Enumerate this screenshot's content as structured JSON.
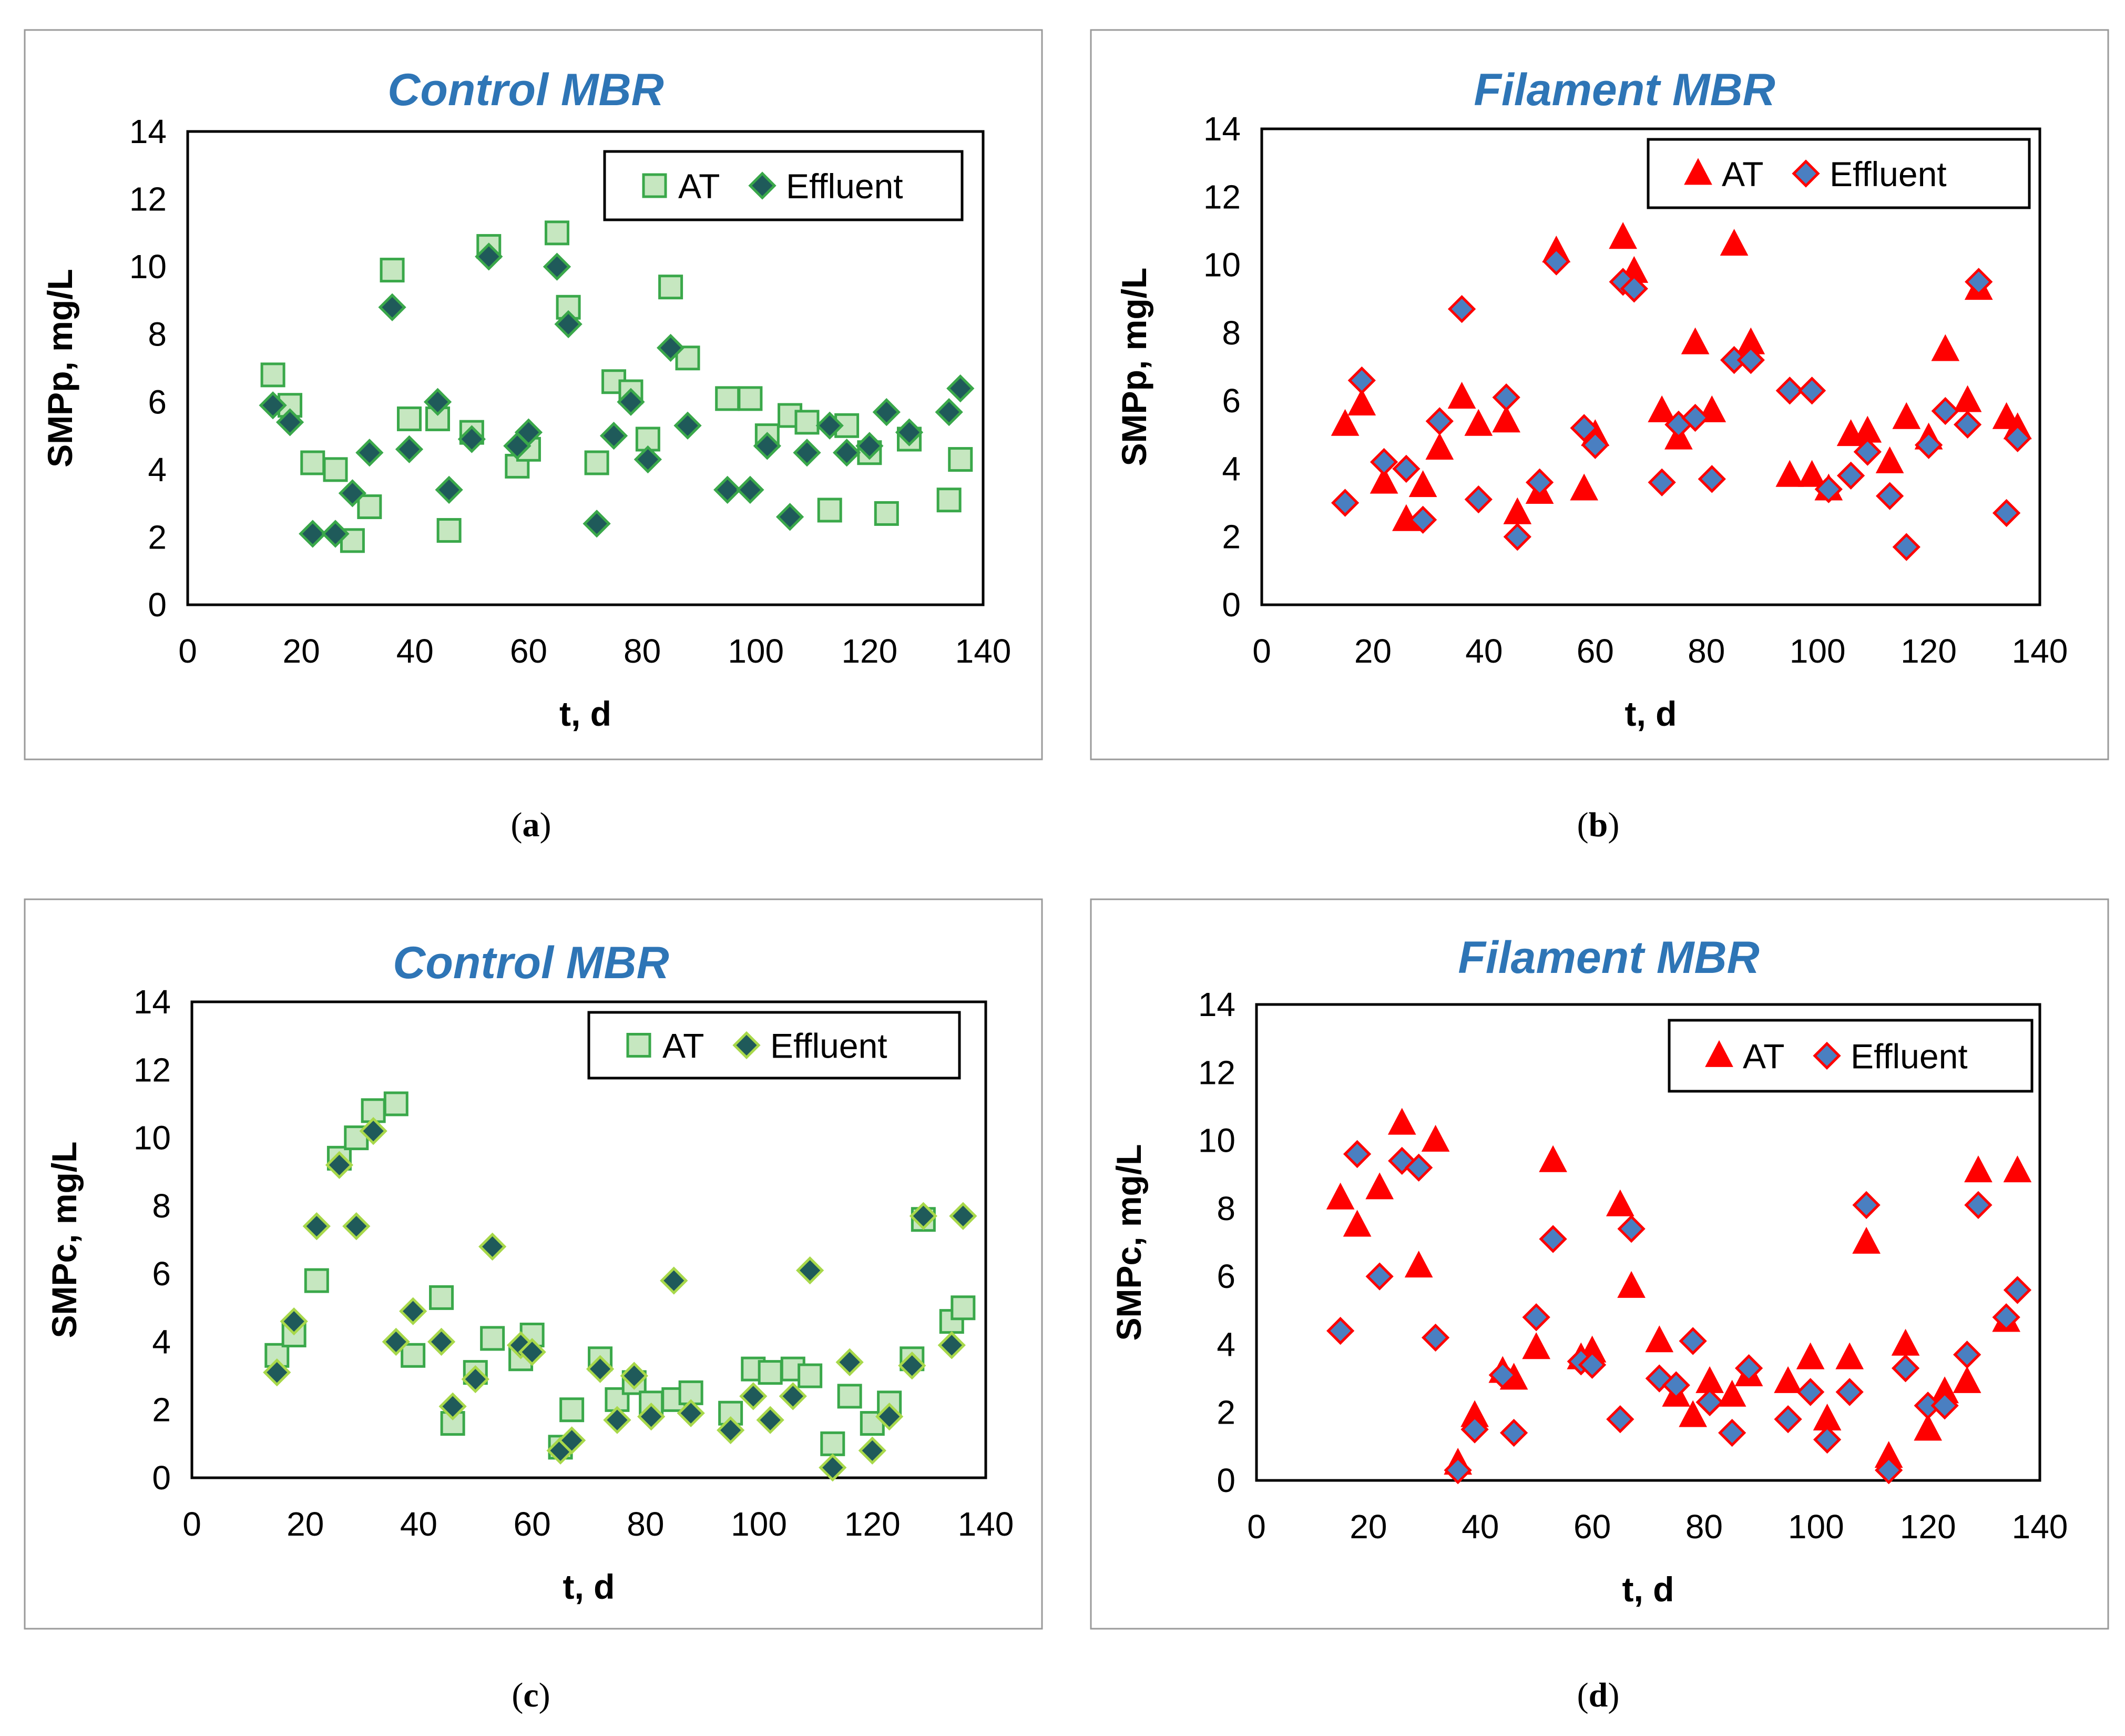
{
  "chart_data": [
    {
      "id": "a",
      "type": "scatter",
      "title": "Control MBR",
      "caption": "a",
      "xlabel": "t, d",
      "ylabel": "SMPp, mg/L",
      "xlim": [
        0,
        140
      ],
      "ylim": [
        0,
        14
      ],
      "xticks": [
        "0",
        "20",
        "40",
        "60",
        "80",
        "100",
        "120",
        "140"
      ],
      "yticks": [
        "0",
        "2",
        "4",
        "6",
        "8",
        "10",
        "12",
        "14"
      ],
      "grid": "horizontal",
      "legend_position": "top-right",
      "series": [
        {
          "name": "AT",
          "marker": "square",
          "fill": "#c6e7c0",
          "stroke": "#3aa84a",
          "x": [
            15,
            18,
            22,
            26,
            29,
            32,
            36,
            39,
            44,
            46,
            50,
            53,
            58,
            60,
            65,
            67,
            72,
            75,
            78,
            81,
            85,
            88,
            95,
            99,
            102,
            106,
            109,
            113,
            116,
            120,
            123,
            127,
            134,
            136
          ],
          "y": [
            6.8,
            5.9,
            4.2,
            4.0,
            1.9,
            2.9,
            9.9,
            5.5,
            5.5,
            2.2,
            5.1,
            10.6,
            4.1,
            4.6,
            11.0,
            8.8,
            4.2,
            6.6,
            6.3,
            4.9,
            9.4,
            7.3,
            6.1,
            6.1,
            5.0,
            5.6,
            5.4,
            2.8,
            5.3,
            4.5,
            2.7,
            4.9,
            3.1,
            4.3
          ]
        },
        {
          "name": "Effluent",
          "marker": "diamond",
          "fill": "#1f5a5a",
          "stroke": "#3aa84a",
          "x": [
            15,
            18,
            22,
            26,
            29,
            32,
            36,
            39,
            44,
            46,
            50,
            53,
            58,
            60,
            65,
            67,
            72,
            75,
            78,
            81,
            85,
            88,
            95,
            99,
            102,
            106,
            109,
            113,
            116,
            120,
            123,
            127,
            134,
            136
          ],
          "y": [
            5.9,
            5.4,
            2.1,
            2.1,
            3.3,
            4.5,
            8.8,
            4.6,
            6.0,
            3.4,
            4.9,
            10.3,
            4.7,
            5.1,
            10.0,
            8.3,
            2.4,
            5.0,
            6.0,
            4.3,
            7.6,
            5.3,
            3.4,
            3.4,
            4.7,
            2.6,
            4.5,
            5.3,
            4.5,
            4.7,
            5.7,
            5.1,
            5.7,
            6.4
          ]
        }
      ]
    },
    {
      "id": "b",
      "type": "scatter",
      "title": "Filament MBR",
      "caption": "b",
      "xlabel": "t, d",
      "ylabel": "SMPp, mg/L",
      "xlim": [
        0,
        140
      ],
      "ylim": [
        0,
        14
      ],
      "xticks": [
        "0",
        "20",
        "40",
        "60",
        "80",
        "100",
        "120",
        "140"
      ],
      "yticks": [
        "0",
        "2",
        "4",
        "6",
        "8",
        "10",
        "12",
        "14"
      ],
      "grid": "both",
      "legend_position": "top-right",
      "series": [
        {
          "name": "AT",
          "marker": "triangle",
          "fill": "#ff0000",
          "stroke": "#ff0000",
          "x": [
            15,
            18,
            22,
            26,
            29,
            32,
            36,
            39,
            44,
            46,
            50,
            53,
            58,
            60,
            65,
            67,
            72,
            75,
            78,
            81,
            85,
            88,
            95,
            99,
            102,
            106,
            109,
            113,
            116,
            120,
            123,
            127,
            129,
            134,
            136
          ],
          "y": [
            5.3,
            5.9,
            3.6,
            2.5,
            3.5,
            4.6,
            6.1,
            5.3,
            5.4,
            2.7,
            3.3,
            10.4,
            3.4,
            5.0,
            10.8,
            9.8,
            5.7,
            4.9,
            7.7,
            5.7,
            10.6,
            7.7,
            3.8,
            3.8,
            3.4,
            5.0,
            5.1,
            4.2,
            5.5,
            4.9,
            7.5,
            6.0,
            9.3,
            5.5,
            5.2
          ]
        },
        {
          "name": "Effluent",
          "marker": "diamond",
          "fill": "#4a7fc1",
          "stroke": "#ff0000",
          "x": [
            15,
            18,
            22,
            26,
            29,
            32,
            36,
            39,
            44,
            46,
            50,
            53,
            58,
            60,
            65,
            67,
            72,
            75,
            78,
            81,
            85,
            88,
            95,
            99,
            102,
            106,
            109,
            113,
            116,
            120,
            123,
            127,
            129,
            134,
            136
          ],
          "y": [
            3.0,
            6.6,
            4.2,
            4.0,
            2.5,
            5.4,
            8.7,
            3.1,
            6.1,
            2.0,
            3.6,
            10.1,
            5.2,
            4.7,
            9.5,
            9.3,
            3.6,
            5.3,
            5.5,
            3.7,
            7.2,
            7.2,
            6.3,
            6.3,
            3.4,
            3.8,
            4.5,
            3.2,
            1.7,
            4.7,
            5.7,
            5.3,
            9.5,
            2.7,
            4.9
          ]
        }
      ]
    },
    {
      "id": "c",
      "type": "scatter",
      "title": "Control MBR",
      "caption": "c",
      "xlabel": "t, d",
      "ylabel": "SMPc, mg/L",
      "xlim": [
        0,
        140
      ],
      "ylim": [
        0,
        14
      ],
      "xticks": [
        "0",
        "20",
        "40",
        "60",
        "80",
        "100",
        "120",
        "140"
      ],
      "yticks": [
        "0",
        "2",
        "4",
        "6",
        "8",
        "10",
        "12",
        "14"
      ],
      "grid": "both",
      "legend_position": "top-right",
      "series": [
        {
          "name": "AT",
          "marker": "square",
          "fill": "#c6e7c0",
          "stroke": "#3aa84a",
          "x": [
            15,
            18,
            22,
            26,
            29,
            32,
            36,
            39,
            44,
            46,
            50,
            53,
            58,
            60,
            65,
            67,
            72,
            75,
            78,
            81,
            85,
            88,
            95,
            99,
            102,
            106,
            109,
            113,
            116,
            120,
            123,
            127,
            129,
            134,
            136
          ],
          "y": [
            3.6,
            4.2,
            5.8,
            9.4,
            10.0,
            10.8,
            11.0,
            3.6,
            5.3,
            1.6,
            3.1,
            4.1,
            3.5,
            4.2,
            0.9,
            2.0,
            3.5,
            2.3,
            2.8,
            2.2,
            2.3,
            2.5,
            1.9,
            3.2,
            3.1,
            3.2,
            3.0,
            1.0,
            2.4,
            1.6,
            2.2,
            3.5,
            7.6,
            4.6,
            5.0
          ]
        },
        {
          "name": "Effluent",
          "marker": "diamond",
          "fill": "#1f5a5a",
          "stroke": "#a8d84a",
          "x": [
            15,
            18,
            22,
            26,
            29,
            32,
            36,
            39,
            44,
            46,
            50,
            53,
            58,
            60,
            65,
            67,
            72,
            75,
            78,
            81,
            85,
            88,
            95,
            99,
            102,
            106,
            109,
            113,
            116,
            120,
            123,
            127,
            129,
            134,
            136
          ],
          "y": [
            3.1,
            4.6,
            7.4,
            9.2,
            7.4,
            10.2,
            4.0,
            4.9,
            4.0,
            2.1,
            2.9,
            6.8,
            3.9,
            3.7,
            0.8,
            1.1,
            3.2,
            1.7,
            3.0,
            1.8,
            5.8,
            1.9,
            1.4,
            2.4,
            1.7,
            2.4,
            6.1,
            0.3,
            3.4,
            0.8,
            1.8,
            3.3,
            7.7,
            3.9,
            7.7
          ]
        }
      ]
    },
    {
      "id": "d",
      "type": "scatter",
      "title": "Filament MBR",
      "caption": "d",
      "xlabel": "t, d",
      "ylabel": "SMPc, mg/L",
      "xlim": [
        0,
        140
      ],
      "ylim": [
        0,
        14
      ],
      "xticks": [
        "0",
        "20",
        "40",
        "60",
        "80",
        "100",
        "120",
        "140"
      ],
      "yticks": [
        "0",
        "2",
        "4",
        "6",
        "8",
        "10",
        "12",
        "14"
      ],
      "grid": "both",
      "legend_position": "top-right",
      "series": [
        {
          "name": "AT",
          "marker": "triangle",
          "fill": "#ff0000",
          "stroke": "#ff0000",
          "x": [
            15,
            18,
            22,
            26,
            29,
            32,
            36,
            39,
            44,
            46,
            50,
            53,
            58,
            60,
            65,
            67,
            72,
            75,
            78,
            81,
            85,
            88,
            95,
            99,
            102,
            106,
            109,
            113,
            116,
            120,
            123,
            127,
            129,
            134,
            136
          ],
          "y": [
            8.3,
            7.5,
            8.6,
            10.5,
            6.3,
            10.0,
            0.5,
            1.9,
            3.2,
            3.0,
            3.9,
            9.4,
            3.6,
            3.8,
            8.1,
            5.7,
            4.1,
            2.5,
            1.9,
            2.9,
            2.5,
            3.1,
            2.9,
            3.6,
            1.8,
            3.6,
            7.0,
            0.7,
            4.0,
            1.5,
            2.6,
            2.9,
            9.1,
            4.7,
            9.1
          ]
        },
        {
          "name": "Effluent",
          "marker": "diamond",
          "fill": "#4a7fc1",
          "stroke": "#ff0000",
          "x": [
            15,
            18,
            22,
            26,
            29,
            32,
            36,
            39,
            44,
            46,
            50,
            53,
            58,
            60,
            65,
            67,
            72,
            75,
            78,
            81,
            85,
            88,
            95,
            99,
            102,
            106,
            109,
            113,
            116,
            120,
            123,
            127,
            129,
            134,
            136
          ],
          "y": [
            4.4,
            9.6,
            6.0,
            9.4,
            9.2,
            4.2,
            0.3,
            1.5,
            3.1,
            1.4,
            4.8,
            7.1,
            3.5,
            3.4,
            1.8,
            7.4,
            3.0,
            2.8,
            4.1,
            2.3,
            1.4,
            3.3,
            1.8,
            2.6,
            1.2,
            2.6,
            8.1,
            0.3,
            3.3,
            2.2,
            2.2,
            3.7,
            8.1,
            4.8,
            5.6
          ]
        }
      ]
    }
  ]
}
